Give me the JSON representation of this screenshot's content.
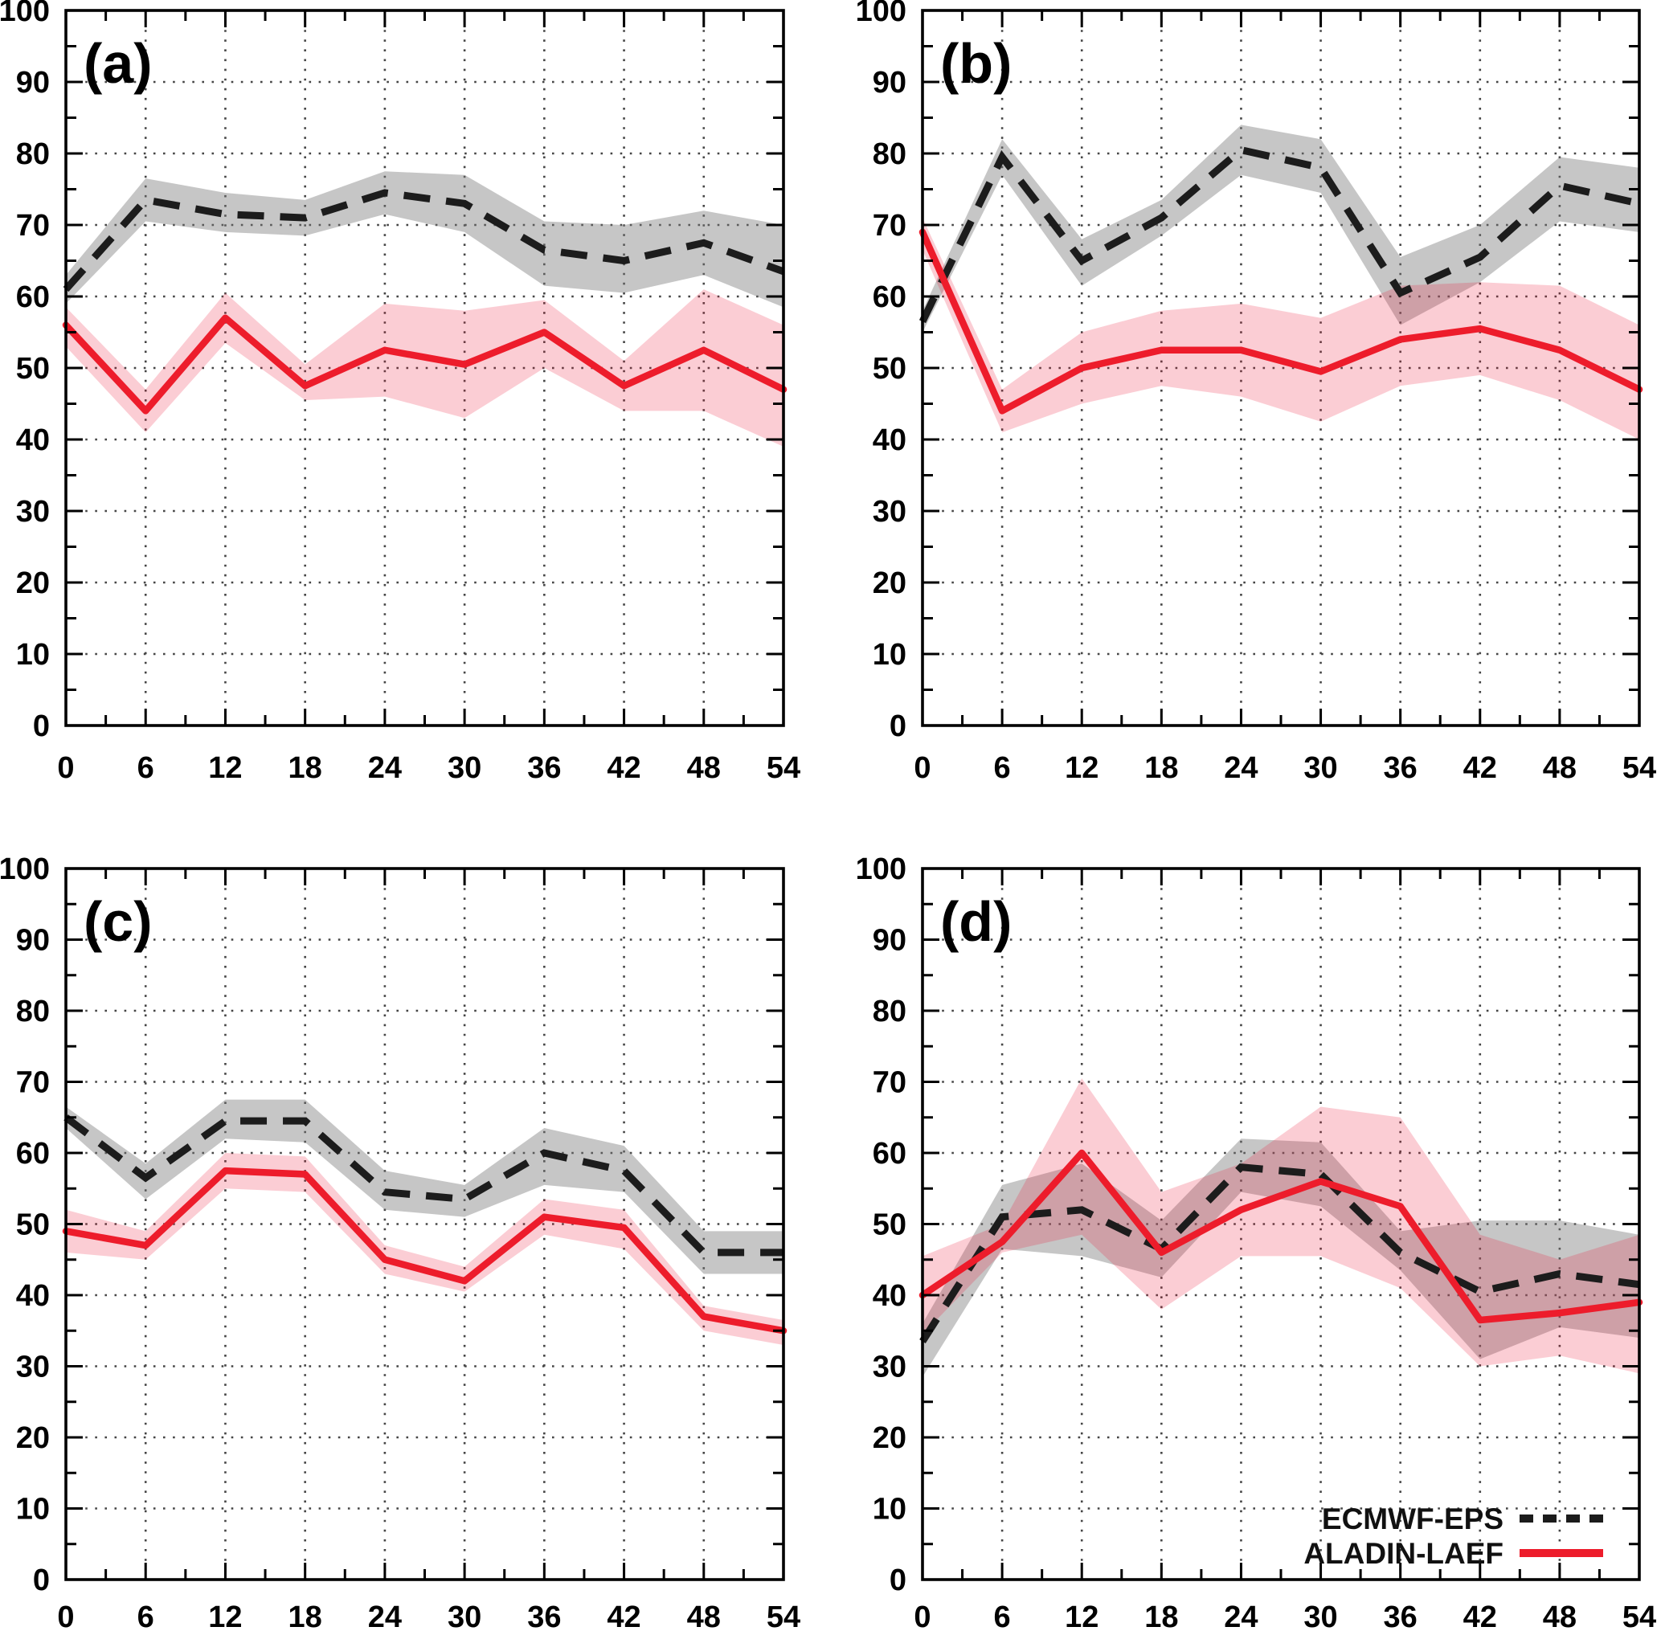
{
  "figure": {
    "title": "",
    "panels_count": 4,
    "panel_labels": [
      "(a)",
      "(b)",
      "(c)",
      "(d)"
    ]
  },
  "colors": {
    "background": "#ffffff",
    "axis": "#000000",
    "grid": "#454545",
    "ecmwf_line": "#1c1c1c",
    "ecmwf_band_fill": "rgba(120,120,120,0.42)",
    "aladin_line": "#ed1c2b",
    "aladin_band_fill": "rgba(237,28,60,0.22)",
    "tick_label_color": "#000000"
  },
  "legend": {
    "location": "bottom-right of panel (d)",
    "items": [
      {
        "label": "ECMWF-EPS",
        "style": "dashed-black"
      },
      {
        "label": "ALADIN-LAEF",
        "style": "solid-red"
      }
    ]
  },
  "axes": {
    "xlim": [
      0,
      54
    ],
    "ylim": [
      0,
      100
    ],
    "x_tick_labels": [
      0,
      6,
      12,
      18,
      24,
      30,
      36,
      42,
      48,
      54
    ],
    "y_tick_labels": [
      0,
      10,
      20,
      30,
      40,
      50,
      60,
      70,
      80,
      90,
      100
    ],
    "x_minor_step": 3,
    "y_minor_step": 5,
    "grid": "dotted"
  },
  "chart_data": [
    {
      "id": "a",
      "label": "(a)",
      "type": "line",
      "x": [
        0,
        6,
        12,
        18,
        24,
        30,
        36,
        42,
        48,
        54
      ],
      "series": [
        {
          "name": "ECMWF-EPS",
          "values": [
            61,
            73.5,
            71.5,
            71,
            74.5,
            73,
            66.5,
            65,
            67.5,
            63.5
          ],
          "band_upper": [
            63,
            76.5,
            74.5,
            73.5,
            77.5,
            77,
            70.5,
            70,
            72,
            70
          ],
          "band_lower": [
            59,
            70.5,
            69,
            68.5,
            71.5,
            69,
            61.5,
            60.5,
            63,
            58.5
          ]
        },
        {
          "name": "ALADIN-LAEF",
          "values": [
            56,
            44,
            57,
            47.5,
            52.5,
            50.5,
            55,
            47.5,
            52.5,
            47
          ],
          "band_upper": [
            58.5,
            47,
            60.5,
            50.5,
            59,
            58,
            59.5,
            51,
            61,
            56
          ],
          "band_lower": [
            53,
            41,
            53.5,
            45.5,
            46,
            43,
            50,
            44,
            44,
            39
          ]
        }
      ]
    },
    {
      "id": "b",
      "label": "(b)",
      "type": "line",
      "x": [
        0,
        6,
        12,
        18,
        24,
        30,
        36,
        42,
        48,
        54
      ],
      "series": [
        {
          "name": "ECMWF-EPS",
          "values": [
            56.5,
            79.5,
            65,
            71,
            80.5,
            78,
            60.5,
            65.5,
            75.5,
            73
          ],
          "band_upper": [
            58,
            82,
            68,
            73.5,
            84,
            82,
            65.5,
            70,
            79.5,
            78
          ],
          "band_lower": [
            55,
            77,
            61.5,
            68.5,
            77,
            74.5,
            56,
            62,
            70.5,
            69
          ]
        },
        {
          "name": "ALADIN-LAEF",
          "values": [
            69,
            44,
            50,
            52.5,
            52.5,
            49.5,
            54,
            55.5,
            52.5,
            47
          ],
          "band_upper": [
            71,
            47,
            55,
            58,
            59,
            57,
            61.5,
            62,
            61.5,
            56
          ],
          "band_lower": [
            66.5,
            41,
            45,
            47.5,
            46,
            42.5,
            47.5,
            49,
            45.5,
            40
          ]
        }
      ]
    },
    {
      "id": "c",
      "label": "(c)",
      "type": "line",
      "x": [
        0,
        6,
        12,
        18,
        24,
        30,
        36,
        42,
        48,
        54
      ],
      "series": [
        {
          "name": "ECMWF-EPS",
          "values": [
            65,
            56.5,
            64.5,
            64.5,
            54.5,
            53.5,
            60,
            57.5,
            46,
            46
          ],
          "band_upper": [
            66.5,
            58.5,
            67.5,
            67.5,
            57.5,
            55.5,
            63.5,
            61,
            49,
            49
          ],
          "band_lower": [
            63.5,
            53.5,
            62,
            61.5,
            52,
            51,
            55.5,
            54.5,
            43,
            43
          ]
        },
        {
          "name": "ALADIN-LAEF",
          "values": [
            49,
            47,
            57.5,
            57,
            45,
            42,
            51,
            49.5,
            37,
            35
          ],
          "band_upper": [
            52,
            49,
            60,
            59.5,
            47,
            44,
            53.5,
            52,
            38.5,
            36.5
          ],
          "band_lower": [
            46,
            45,
            55,
            54.5,
            43,
            40.5,
            48.5,
            46.5,
            35,
            33
          ]
        }
      ]
    },
    {
      "id": "d",
      "label": "(d)",
      "type": "line",
      "x": [
        0,
        6,
        12,
        18,
        24,
        30,
        36,
        42,
        48,
        54
      ],
      "series": [
        {
          "name": "ECMWF-EPS",
          "values": [
            33.5,
            51,
            52,
            46.5,
            58,
            57,
            46,
            40.5,
            43,
            41.5
          ],
          "band_upper": [
            36,
            55.5,
            58.5,
            50.5,
            62,
            61.5,
            49,
            50.5,
            50.5,
            48.5
          ],
          "band_lower": [
            28.5,
            46.5,
            45.5,
            42.5,
            54.5,
            52.5,
            43.5,
            31,
            35.5,
            34
          ]
        },
        {
          "name": "ALADIN-LAEF",
          "values": [
            40,
            47.5,
            60,
            46,
            52,
            56,
            52.5,
            36.5,
            37.5,
            39
          ],
          "band_upper": [
            45.5,
            50,
            70.5,
            54.5,
            58.5,
            66.5,
            65,
            48.5,
            45,
            48.5
          ],
          "band_lower": [
            34.5,
            46,
            48.5,
            38,
            45.5,
            45.5,
            41,
            30,
            31.5,
            29
          ]
        }
      ]
    }
  ]
}
